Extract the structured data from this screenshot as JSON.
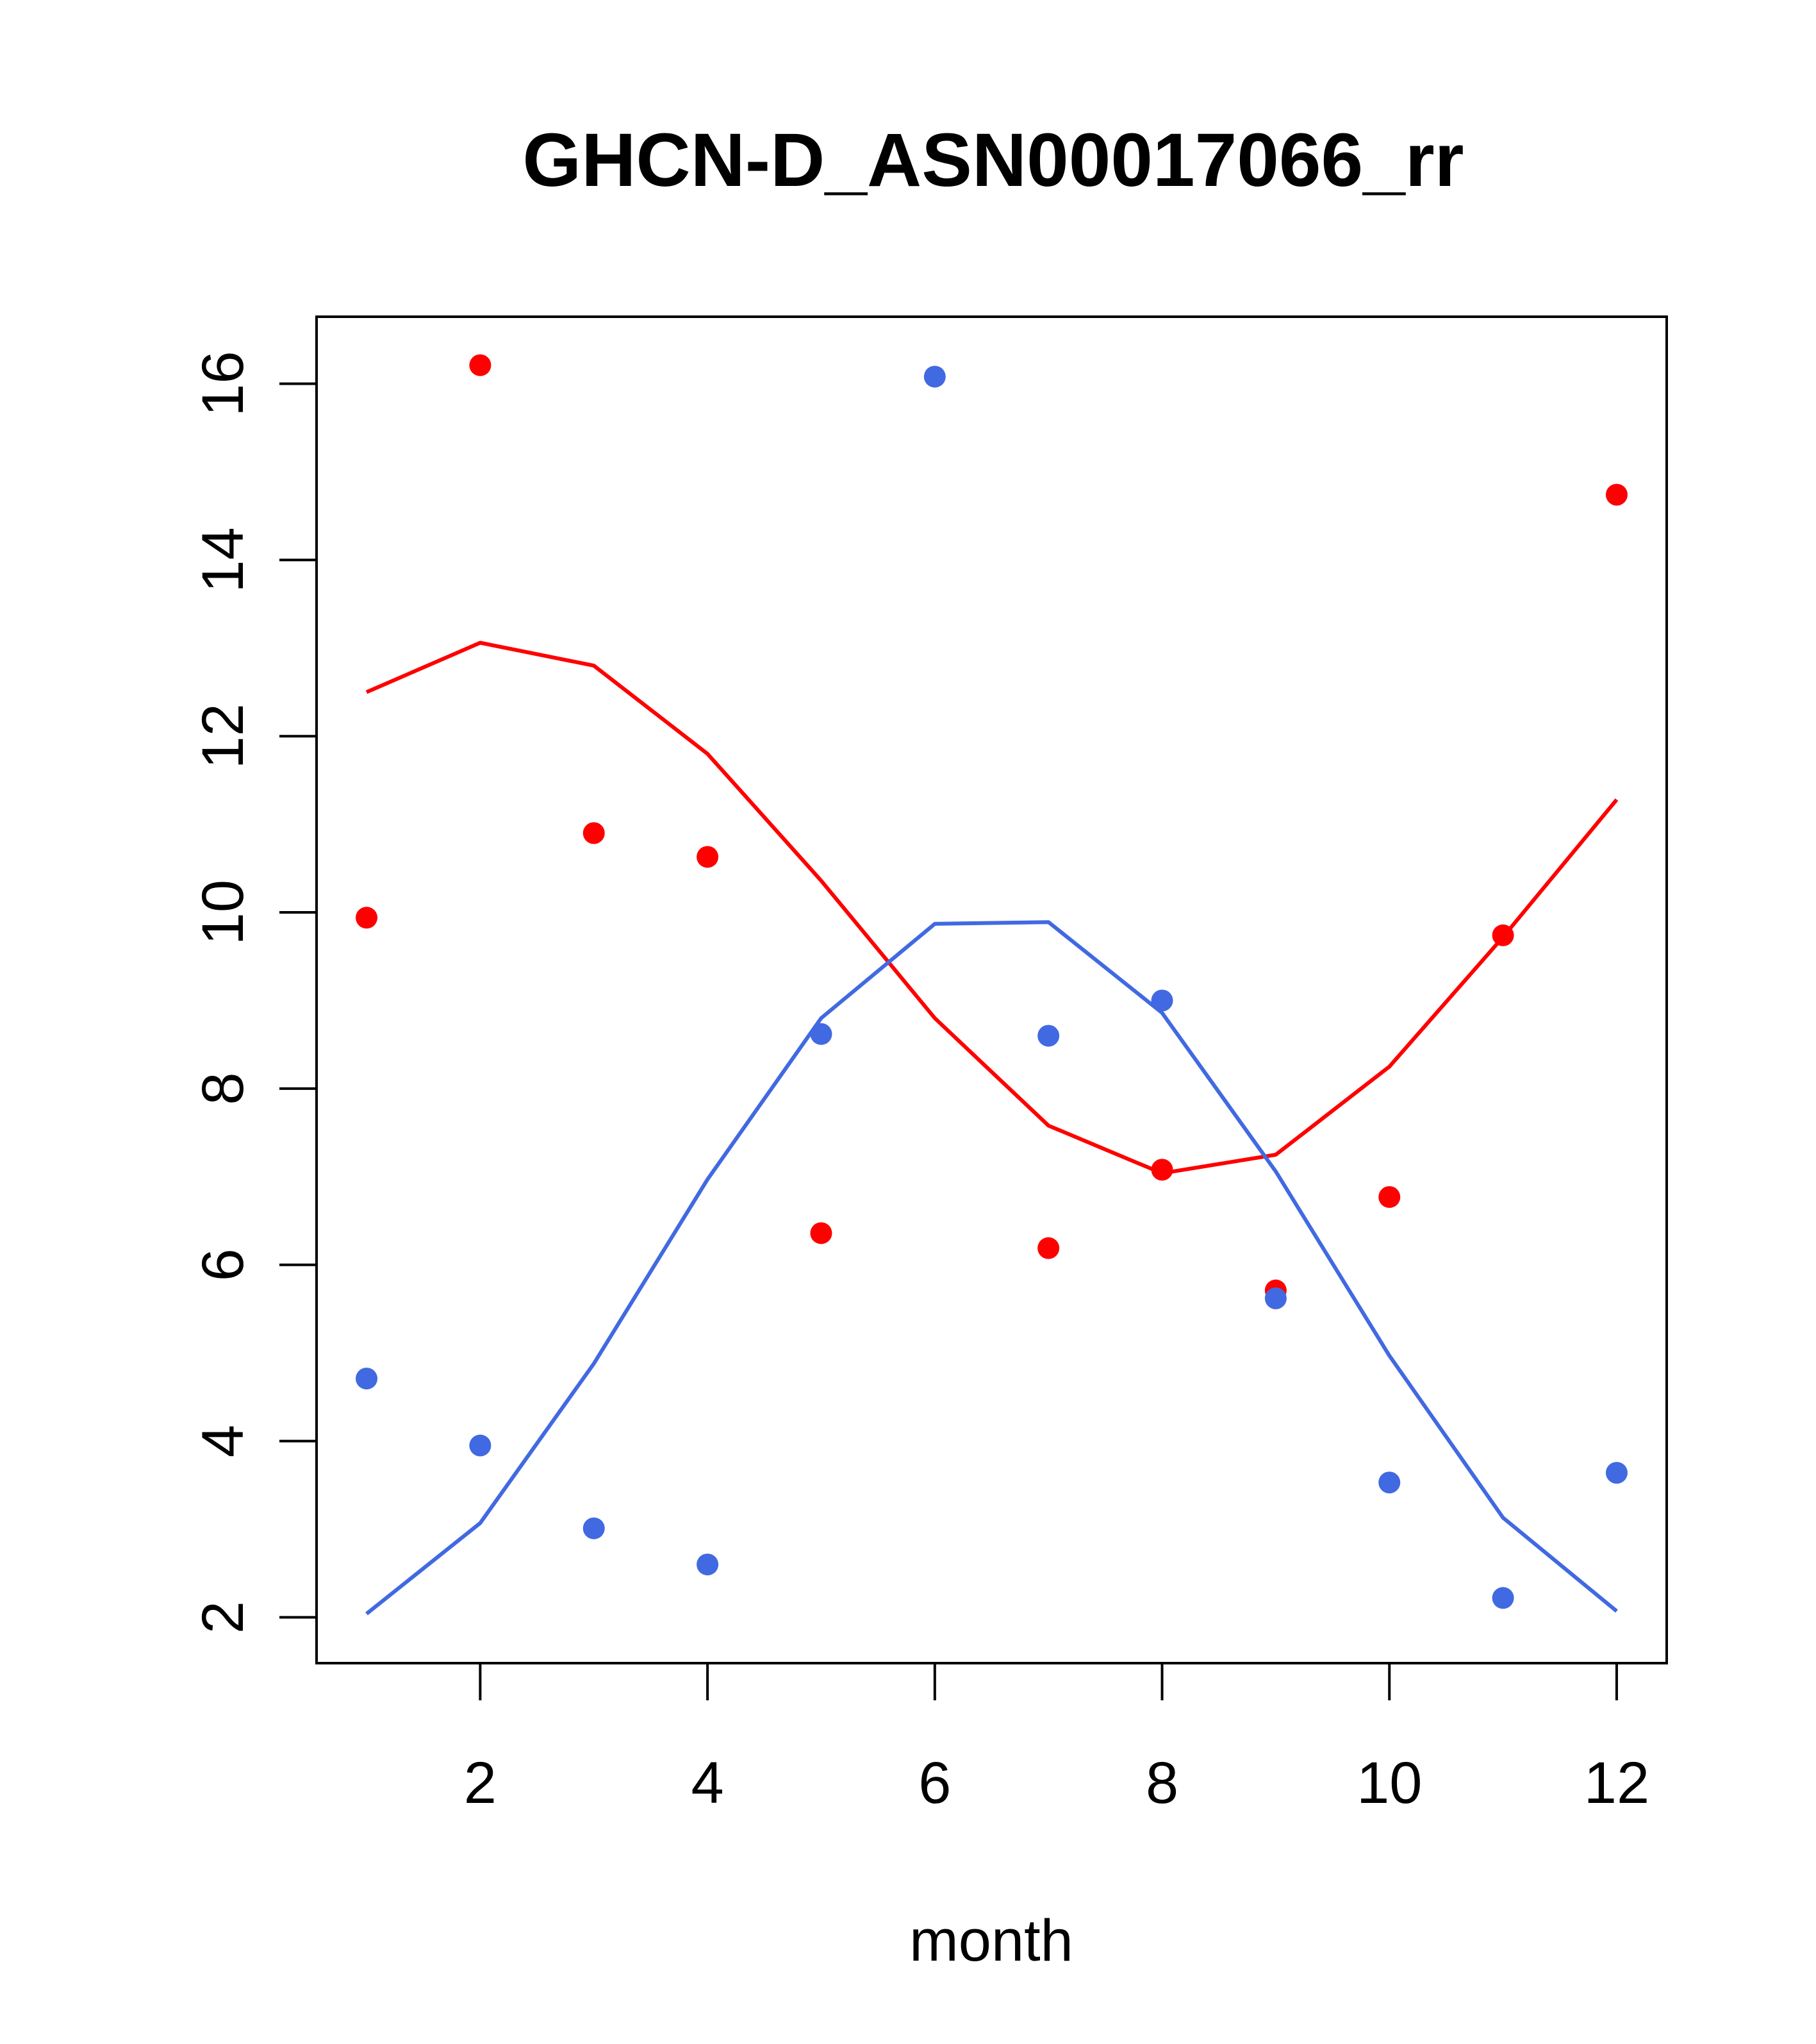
{
  "chart_data": {
    "type": "scatter",
    "title": "GHCN-D_ASN00017066_rr",
    "xlabel": "month",
    "ylabel": "",
    "xlim": [
      0.56,
      12.44
    ],
    "ylim": [
      1.48,
      16.76
    ],
    "x_ticks": [
      2,
      4,
      6,
      8,
      10,
      12
    ],
    "y_ticks": [
      2,
      4,
      6,
      8,
      10,
      12,
      14,
      16
    ],
    "x": [
      1,
      2,
      3,
      4,
      5,
      6,
      7,
      8,
      9,
      10,
      11,
      12
    ],
    "series": [
      {
        "color": "#ff0000",
        "points": [
          9.94,
          16.21,
          10.9,
          10.63,
          6.36,
          null,
          6.19,
          7.08,
          5.71,
          6.77,
          9.74,
          14.74
        ],
        "line": [
          12.5,
          13.06,
          12.8,
          11.8,
          10.36,
          8.8,
          7.58,
          7.04,
          7.25,
          8.25,
          9.72,
          11.28
        ]
      },
      {
        "color": "#4169e1",
        "points": [
          4.71,
          3.95,
          3.01,
          2.6,
          8.62,
          16.08,
          8.6,
          9.0,
          5.62,
          3.53,
          2.22,
          3.64
        ],
        "line": [
          2.04,
          3.07,
          4.88,
          6.97,
          8.8,
          9.87,
          9.89,
          8.86,
          7.06,
          4.97,
          3.13,
          2.07
        ]
      }
    ],
    "grid": false,
    "legend": "none"
  }
}
